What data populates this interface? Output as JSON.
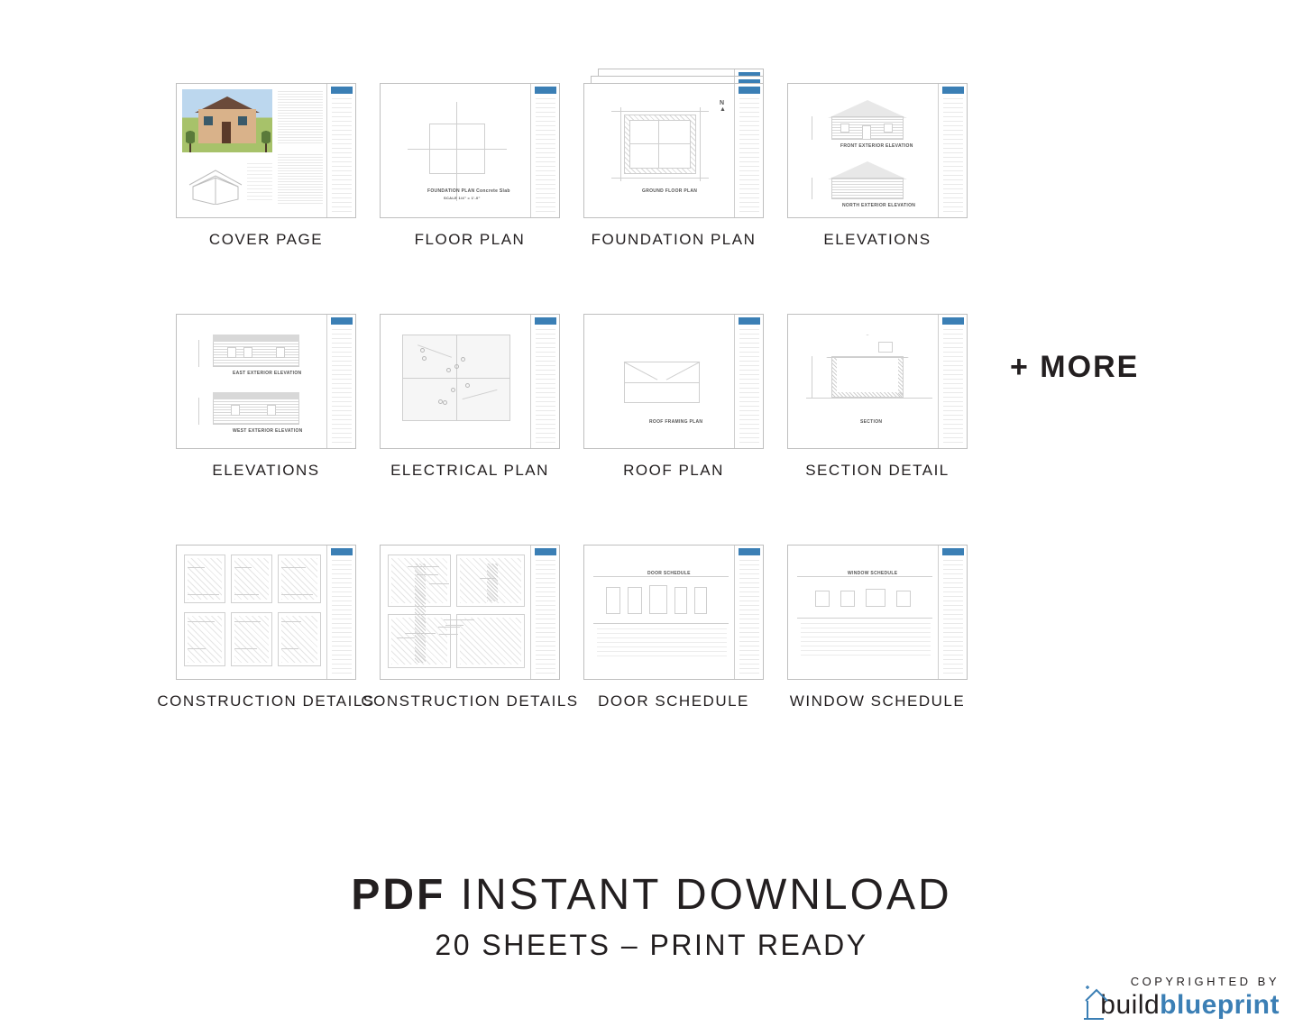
{
  "colors": {
    "border": "#bfbfbf",
    "accent": "#3b7fb5",
    "text": "#231f20",
    "grass": "#a7c26a",
    "sky": "#bcd7ee",
    "wood": "#d9b28a",
    "roof": "#6b4a3a"
  },
  "grid": {
    "rows": 3,
    "cols": 4,
    "thumb_w": 200,
    "thumb_h": 150,
    "col_gap": 26,
    "row_gap": 72
  },
  "cells": [
    {
      "label": "COVER PAGE",
      "kind": "cover",
      "stack": 1
    },
    {
      "label": "FLOOR PLAN",
      "kind": "plan",
      "stack": 1
    },
    {
      "label": "FOUNDATION PLAN",
      "kind": "foundation",
      "stack": 3
    },
    {
      "label": "ELEVATIONS",
      "kind": "elev-front",
      "stack": 1
    },
    {
      "label": "ELEVATIONS",
      "kind": "elev-side",
      "stack": 1
    },
    {
      "label": "ELECTRICAL PLAN",
      "kind": "electrical",
      "stack": 1
    },
    {
      "label": "ROOF PLAN",
      "kind": "roof",
      "stack": 1
    },
    {
      "label": "SECTION DETAIL",
      "kind": "section",
      "stack": 1
    },
    {
      "label": "CONSTRUCTION DETAILS",
      "kind": "details-1",
      "stack": 1
    },
    {
      "label": "CONSTRUCTION DETAILS",
      "kind": "details-2",
      "stack": 1
    },
    {
      "label": "DOOR SCHEDULE",
      "kind": "door-sched",
      "stack": 1
    },
    {
      "label": "WINDOW SCHEDULE",
      "kind": "win-sched",
      "stack": 1
    }
  ],
  "more_label": "+ MORE",
  "footer": {
    "line1_bold": "PDF",
    "line1_rest": " INSTANT DOWNLOAD",
    "line2": "20 SHEETS – PRINT READY"
  },
  "copyright": {
    "top": "COPYRIGHTED BY",
    "brand_a": "build",
    "brand_b": "blueprint"
  }
}
